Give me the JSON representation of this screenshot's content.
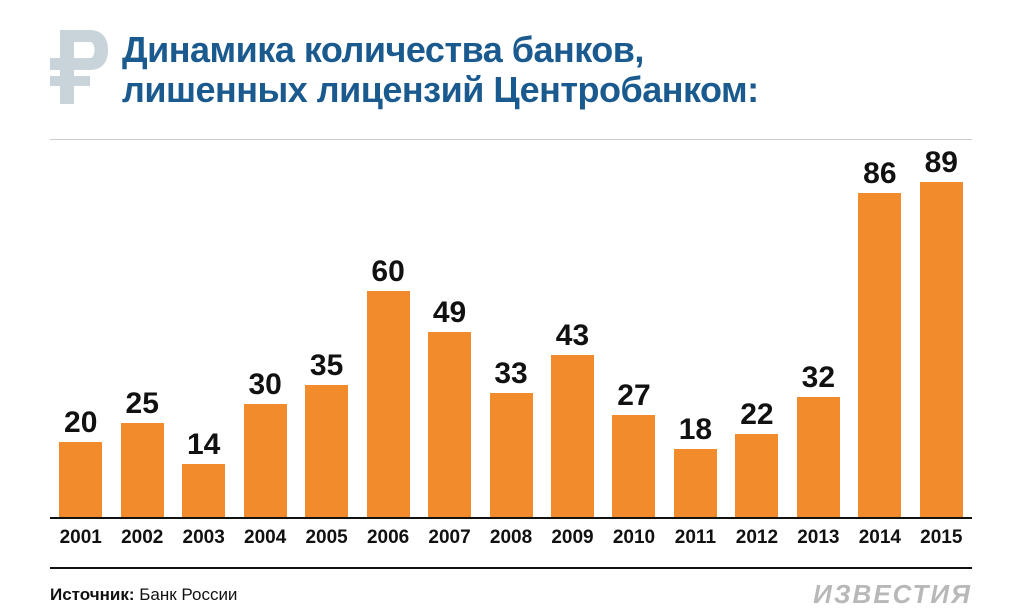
{
  "title_line1": "Динамика количества банков,",
  "title_line2": "лишенных лицензий Центробанком:",
  "title_color": "#1a5a8e",
  "title_fontsize": 36,
  "chart": {
    "type": "bar",
    "categories": [
      "2001",
      "2002",
      "2003",
      "2004",
      "2005",
      "2006",
      "2007",
      "2008",
      "2009",
      "2010",
      "2011",
      "2012",
      "2013",
      "2014",
      "2015"
    ],
    "values": [
      20,
      25,
      14,
      30,
      35,
      60,
      49,
      33,
      43,
      27,
      18,
      22,
      32,
      86,
      89
    ],
    "ymax": 100,
    "bar_color": "#f28b2c",
    "value_fontsize": 30,
    "label_fontsize": 19,
    "label_color": "#111111",
    "topline_color": "#cccccc",
    "baseline_color": "#111111",
    "bar_width_pct": 70
  },
  "source_label": "Источник:",
  "source_value": "Банк России",
  "logo_text": "ИЗВЕСТИЯ",
  "logo_color": "#b8b8b8",
  "logo_fontsize": 26
}
